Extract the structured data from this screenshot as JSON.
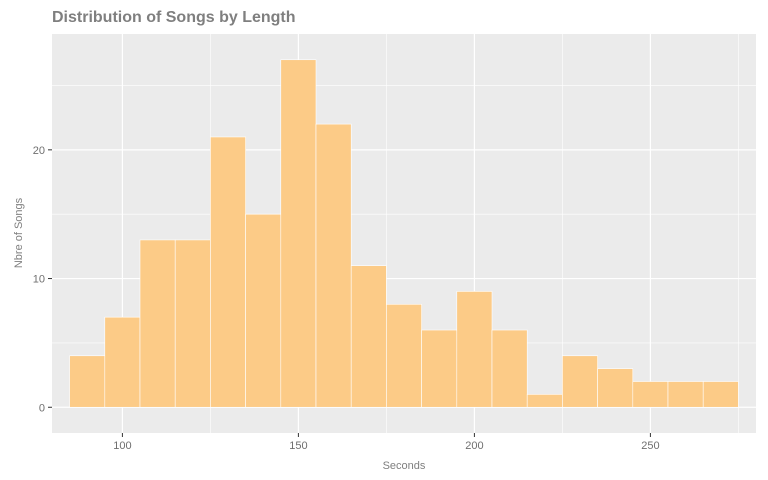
{
  "chart_data": {
    "type": "bar",
    "title": "Distribution of Songs by Length",
    "xlabel": "Seconds",
    "ylabel": "Nbre of Songs",
    "xlim": [
      80,
      280
    ],
    "ylim": [
      -2,
      29
    ],
    "bin_width": 10,
    "x_ticks": [
      100,
      150,
      200,
      250
    ],
    "y_ticks": [
      0,
      10,
      20
    ],
    "grid": true,
    "bar_color": "#fccb87",
    "bar_edge_color": "#ffffff",
    "panel_background": "#ebebeb",
    "grid_color": "#ffffff",
    "bins": [
      {
        "x": 90,
        "count": 4
      },
      {
        "x": 100,
        "count": 7
      },
      {
        "x": 110,
        "count": 13
      },
      {
        "x": 120,
        "count": 13
      },
      {
        "x": 130,
        "count": 21
      },
      {
        "x": 140,
        "count": 15
      },
      {
        "x": 150,
        "count": 27
      },
      {
        "x": 160,
        "count": 22
      },
      {
        "x": 170,
        "count": 11
      },
      {
        "x": 180,
        "count": 8
      },
      {
        "x": 190,
        "count": 6
      },
      {
        "x": 200,
        "count": 9
      },
      {
        "x": 210,
        "count": 6
      },
      {
        "x": 220,
        "count": 1
      },
      {
        "x": 230,
        "count": 4
      },
      {
        "x": 240,
        "count": 3
      },
      {
        "x": 250,
        "count": 2
      },
      {
        "x": 260,
        "count": 2
      },
      {
        "x": 270,
        "count": 2
      }
    ]
  }
}
